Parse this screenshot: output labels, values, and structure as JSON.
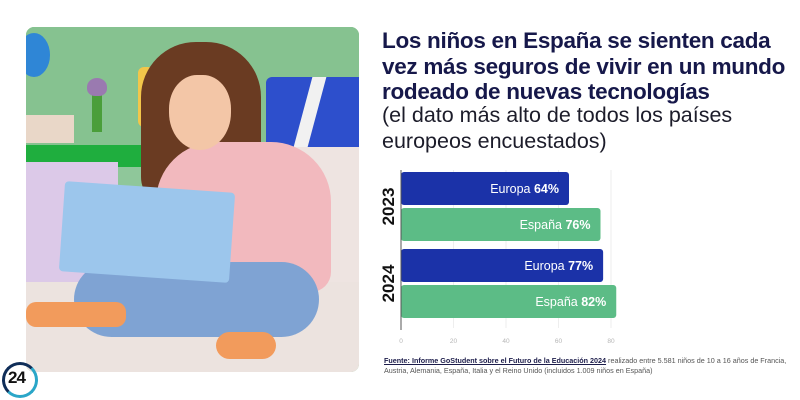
{
  "headline": {
    "title": "Los niños en España se sienten cada vez más seguros de vivir en un mundo rodeado de nuevas tecnologías",
    "subtitle": "(el dato más alto de todos los países europeos encuestados)"
  },
  "photo": {
    "description": "girl-with-laptop-on-bed"
  },
  "colors": {
    "title": "#16184a",
    "europa": "#1b32a8",
    "espana": "#5cbc86",
    "axis": "#555555"
  },
  "chart_data": {
    "type": "bar",
    "orientation": "horizontal",
    "groups": [
      {
        "year": "2023",
        "bars": [
          {
            "name": "Europa",
            "value": 64,
            "label": "64%"
          },
          {
            "name": "España",
            "value": 76,
            "label": "76%"
          }
        ]
      },
      {
        "year": "2024",
        "bars": [
          {
            "name": "Europa",
            "value": 77,
            "label": "77%"
          },
          {
            "name": "España",
            "value": 82,
            "label": "82%"
          }
        ]
      }
    ],
    "series": [
      {
        "name": "Europa",
        "values": [
          64,
          77
        ]
      },
      {
        "name": "España",
        "values": [
          76,
          82
        ]
      }
    ],
    "categories": [
      "2023",
      "2024"
    ],
    "xticks": [
      "0",
      "20",
      "40",
      "60",
      "80"
    ],
    "xlim": [
      0,
      80
    ],
    "grid": true,
    "title": "",
    "xlabel": "",
    "ylabel": ""
  },
  "source": {
    "link_text": "Fuente: Informe GoStudent sobre el Futuro de la Educación 2024",
    "rest_text": " realizado entre 5.581 niños de 10 a 16 años de Francia, Austria, Alemania, España, Italia y el Reino Unido (incluidos 1.009 niños en España)"
  },
  "logo": {
    "text": "24"
  }
}
